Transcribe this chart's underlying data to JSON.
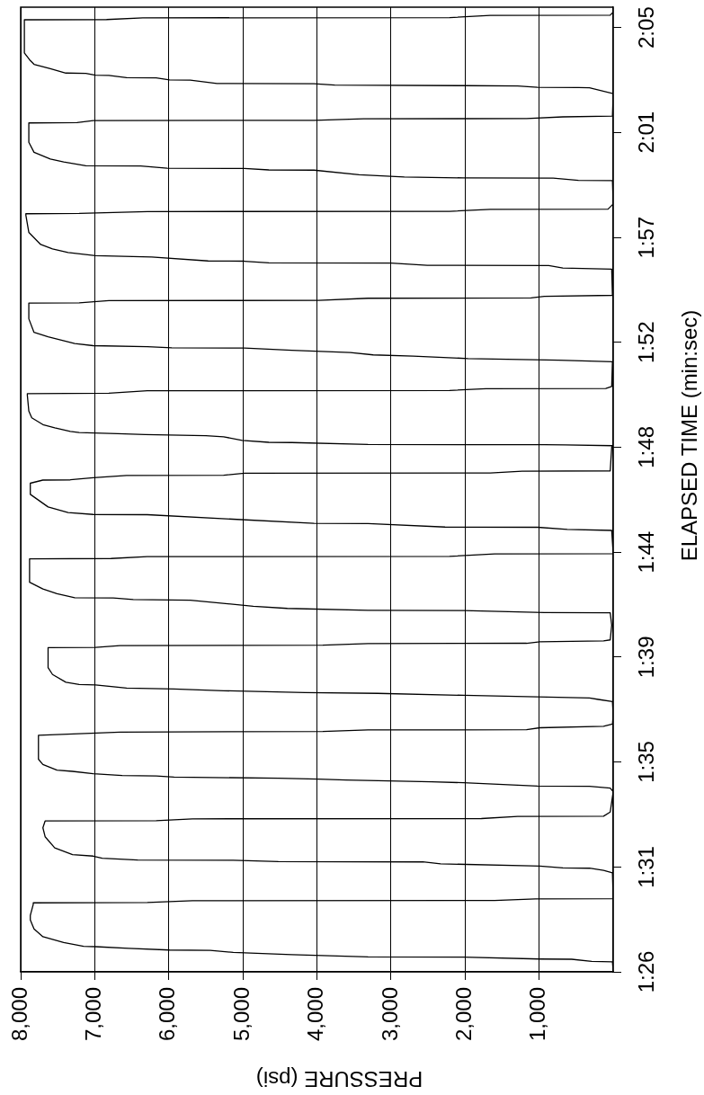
{
  "chart_data": {
    "type": "line",
    "xlabel": "PRESSURE (psi)",
    "ylabel": "ELAPSED TIME (min:sec)",
    "color": "#000000",
    "xlim": [
      8000,
      0
    ],
    "xticks": [
      {
        "value": 1000,
        "label": "1,000"
      },
      {
        "value": 2000,
        "label": "2,000"
      },
      {
        "value": 3000,
        "label": "3,000"
      },
      {
        "value": 4000,
        "label": "4,000"
      },
      {
        "value": 5000,
        "label": "5,000"
      },
      {
        "value": 6000,
        "label": "6,000"
      },
      {
        "value": 7000,
        "label": "7,000"
      },
      {
        "value": 8000,
        "label": "8,000"
      }
    ],
    "ylim": [
      86.4,
      126.24
    ],
    "yticks": [
      {
        "value": 86.4,
        "label": "1:26"
      },
      {
        "value": 90.73,
        "label": "1:31"
      },
      {
        "value": 95.07,
        "label": "1:35"
      },
      {
        "value": 99.4,
        "label": "1:39"
      },
      {
        "value": 103.73,
        "label": "1:44"
      },
      {
        "value": 108.07,
        "label": "1:48"
      },
      {
        "value": 112.4,
        "label": "1:52"
      },
      {
        "value": 116.73,
        "label": "1:57"
      },
      {
        "value": 121.07,
        "label": "2:01"
      },
      {
        "value": 125.4,
        "label": "2:05"
      }
    ],
    "grid": "x",
    "x": [
      0,
      10,
      290,
      560,
      990,
      2020,
      3310,
      4340,
      5130,
      5440,
      5990,
      6540,
      6990,
      7150,
      7420,
      7700,
      7820,
      7870,
      7870,
      7830,
      7830,
      6290,
      5680,
      1600,
      1050,
      0,
      10,
      130,
      320,
      680,
      990,
      1110,
      2330,
      2570,
      4520,
      5130,
      6420,
      6900,
      7020,
      7300,
      7540,
      7670,
      7700,
      7670,
      6170,
      5680,
      1780,
      1290,
      130,
      40,
      0,
      40,
      320,
      1020,
      2020,
      2450,
      3610,
      3980,
      4520,
      5930,
      6170,
      6630,
      7020,
      7300,
      7510,
      7700,
      7760,
      7760,
      6660,
      3920,
      3310,
      1170,
      990,
      130,
      10,
      0,
      10,
      200,
      320,
      2020,
      3180,
      4160,
      5260,
      5930,
      6570,
      6990,
      7210,
      7390,
      7570,
      7630,
      7630,
      6990,
      6660,
      3920,
      3310,
      1170,
      990,
      130,
      40,
      20,
      40,
      930,
      2020,
      3310,
      4400,
      4860,
      5710,
      6480,
      6750,
      7270,
      7510,
      7700,
      7880,
      7880,
      6780,
      6290,
      2210,
      1600,
      0,
      20,
      620,
      1020,
      2270,
      3310,
      4040,
      6290,
      7020,
      7360,
      7630,
      7870,
      7870,
      7700,
      7330,
      7020,
      6570,
      5260,
      4980,
      1660,
      1230,
      40,
      20,
      10,
      650,
      930,
      3310,
      4340,
      4650,
      5010,
      5260,
      5500,
      6320,
      6690,
      7210,
      7330,
      7540,
      7700,
      7850,
      7890,
      7910,
      7910,
      6810,
      6290,
      2210,
      1720,
      100,
      20,
      10,
      740,
      1960,
      2700,
      3240,
      3550,
      4340,
      4980,
      5960,
      6290,
      7020,
      7270,
      7630,
      7820,
      7890,
      7890,
      7210,
      6810,
      3980,
      3310,
      1110,
      930,
      10,
      20,
      680,
      870,
      2510,
      3000,
      4650,
      4980,
      5470,
      6230,
      6990,
      7360,
      7570,
      7730,
      7890,
      7930,
      7930,
      7210,
      6290,
      2210,
      1660,
      70,
      0,
      10,
      470,
      810,
      2020,
      2820,
      3430,
      4040,
      4650,
      4980,
      6020,
      6380,
      7120,
      7420,
      7600,
      7820,
      7890,
      7890,
      7240,
      7020,
      4040,
      3370,
      1170,
      680,
      10,
      0,
      320,
      470,
      1020,
      1290,
      2020,
      3760,
      4040,
      5350,
      5710,
      5990,
      6170,
      6570,
      6810,
      6990,
      7120,
      7390,
      7600,
      7820,
      7880,
      7950,
      7950,
      6840,
      6350,
      2210,
      1660,
      40,
      0
    ],
    "values": [
      86.44,
      86.81,
      86.83,
      86.92,
      86.93,
      87.01,
      87.02,
      87.11,
      87.2,
      87.29,
      87.3,
      87.37,
      87.44,
      87.45,
      87.61,
      87.85,
      88.17,
      88.54,
      88.73,
      89.19,
      89.25,
      89.26,
      89.34,
      89.35,
      89.41,
      89.42,
      90.49,
      90.59,
      90.68,
      90.69,
      90.77,
      90.78,
      90.86,
      90.94,
      90.95,
      91.01,
      91.02,
      91.09,
      91.18,
      91.24,
      91.52,
      91.98,
      92.35,
      92.63,
      92.64,
      92.72,
      92.73,
      92.82,
      92.83,
      93.0,
      93.84,
      93.99,
      94.06,
      94.07,
      94.21,
      94.25,
      94.32,
      94.36,
      94.4,
      94.44,
      94.49,
      94.51,
      94.58,
      94.68,
      94.73,
      94.96,
      95.18,
      96.17,
      96.3,
      96.33,
      96.39,
      96.4,
      96.48,
      96.54,
      96.63,
      97.0,
      97.56,
      97.65,
      97.71,
      97.82,
      97.9,
      97.93,
      98.01,
      98.08,
      98.12,
      98.25,
      98.27,
      98.36,
      98.68,
      98.96,
      99.79,
      99.8,
      99.87,
      99.89,
      99.96,
      99.97,
      100.03,
      100.07,
      100.11,
      100.72,
      101.23,
      101.24,
      101.32,
      101.33,
      101.41,
      101.5,
      101.75,
      101.78,
      101.84,
      101.85,
      102.02,
      102.21,
      102.49,
      103.46,
      103.47,
      103.55,
      103.56,
      103.66,
      103.67,
      104.63,
      104.67,
      104.76,
      104.77,
      104.91,
      104.92,
      105.28,
      105.29,
      105.37,
      105.6,
      106.12,
      106.58,
      106.71,
      106.72,
      106.81,
      106.9,
      106.91,
      106.99,
      107.0,
      107.08,
      107.09,
      108.07,
      108.13,
      108.16,
      108.17,
      108.18,
      108.26,
      108.27,
      108.35,
      108.5,
      108.54,
      108.59,
      108.63,
      108.67,
      108.72,
      108.87,
      109.0,
      109.28,
      109.56,
      110.21,
      110.28,
      110.3,
      110.4,
      110.41,
      110.48,
      110.49,
      110.58,
      111.6,
      111.66,
      111.73,
      111.83,
      111.88,
      111.98,
      112.07,
      112.16,
      112.17,
      112.22,
      112.26,
      112.35,
      112.63,
      112.81,
      113.37,
      114.02,
      114.03,
      114.12,
      114.13,
      114.22,
      114.23,
      114.3,
      114.34,
      115.42,
      115.47,
      115.57,
      115.58,
      115.67,
      115.68,
      115.75,
      115.76,
      115.92,
      115.98,
      116.11,
      116.26,
      116.44,
      116.94,
      117.65,
      117.71,
      117.72,
      117.8,
      117.81,
      117.89,
      117.9,
      118.11,
      119.08,
      119.09,
      119.18,
      119.19,
      119.23,
      119.32,
      119.51,
      119.52,
      119.58,
      119.59,
      119.68,
      119.69,
      119.85,
      119.97,
      120.25,
      120.66,
      121.46,
      121.47,
      121.56,
      121.57,
      121.63,
      121.64,
      121.71,
      121.74,
      122.67,
      122.91,
      122.92,
      122.93,
      122.99,
      123.0,
      123.02,
      123.08,
      123.09,
      123.23,
      123.24,
      123.32,
      123.33,
      123.42,
      123.43,
      123.51,
      123.52,
      123.7,
      123.88,
      124.07,
      124.35,
      125.72,
      125.73,
      125.8,
      125.81,
      125.9,
      125.91,
      126.04
    ]
  }
}
